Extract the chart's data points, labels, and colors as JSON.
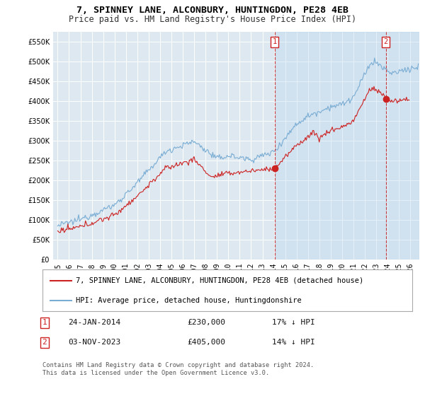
{
  "title": "7, SPINNEY LANE, ALCONBURY, HUNTINGDON, PE28 4EB",
  "subtitle": "Price paid vs. HM Land Registry's House Price Index (HPI)",
  "ylim": [
    0,
    575000
  ],
  "yticks": [
    0,
    50000,
    100000,
    150000,
    200000,
    250000,
    300000,
    350000,
    400000,
    450000,
    500000,
    550000
  ],
  "ytick_labels": [
    "£0",
    "£50K",
    "£100K",
    "£150K",
    "£200K",
    "£250K",
    "£300K",
    "£350K",
    "£400K",
    "£450K",
    "£500K",
    "£550K"
  ],
  "xlim_start": 1994.6,
  "xlim_end": 2026.8,
  "xtick_labels": [
    "1995",
    "1996",
    "1997",
    "1998",
    "1999",
    "2000",
    "2001",
    "2002",
    "2003",
    "2004",
    "2005",
    "2006",
    "2007",
    "2008",
    "2009",
    "2010",
    "2011",
    "2012",
    "2013",
    "2014",
    "2015",
    "2016",
    "2017",
    "2018",
    "2019",
    "2020",
    "2021",
    "2022",
    "2023",
    "2024",
    "2025",
    "2026"
  ],
  "background_color": "#ffffff",
  "plot_bg_color": "#dde8f0",
  "shaded_color": "#ddeeff",
  "grid_color": "#ffffff",
  "hpi_color": "#7aadd4",
  "sale_color": "#cc2222",
  "marker1_x": 2014.07,
  "marker1_y": 230000,
  "marker2_x": 2023.84,
  "marker2_y": 405000,
  "sale_points": [
    [
      2014.07,
      230000
    ],
    [
      2023.84,
      405000
    ]
  ],
  "legend_house_label": "7, SPINNEY LANE, ALCONBURY, HUNTINGDON, PE28 4EB (detached house)",
  "legend_hpi_label": "HPI: Average price, detached house, Huntingdonshire",
  "annotation1_label": "1",
  "annotation1_date": "24-JAN-2014",
  "annotation1_price": "£230,000",
  "annotation1_change": "17% ↓ HPI",
  "annotation2_label": "2",
  "annotation2_date": "03-NOV-2023",
  "annotation2_price": "£405,000",
  "annotation2_change": "14% ↓ HPI",
  "footer": "Contains HM Land Registry data © Crown copyright and database right 2024.\nThis data is licensed under the Open Government Licence v3.0.",
  "title_fontsize": 9.5,
  "subtitle_fontsize": 8.5,
  "tick_fontsize": 7,
  "legend_fontsize": 7.5,
  "ann_fontsize": 8
}
